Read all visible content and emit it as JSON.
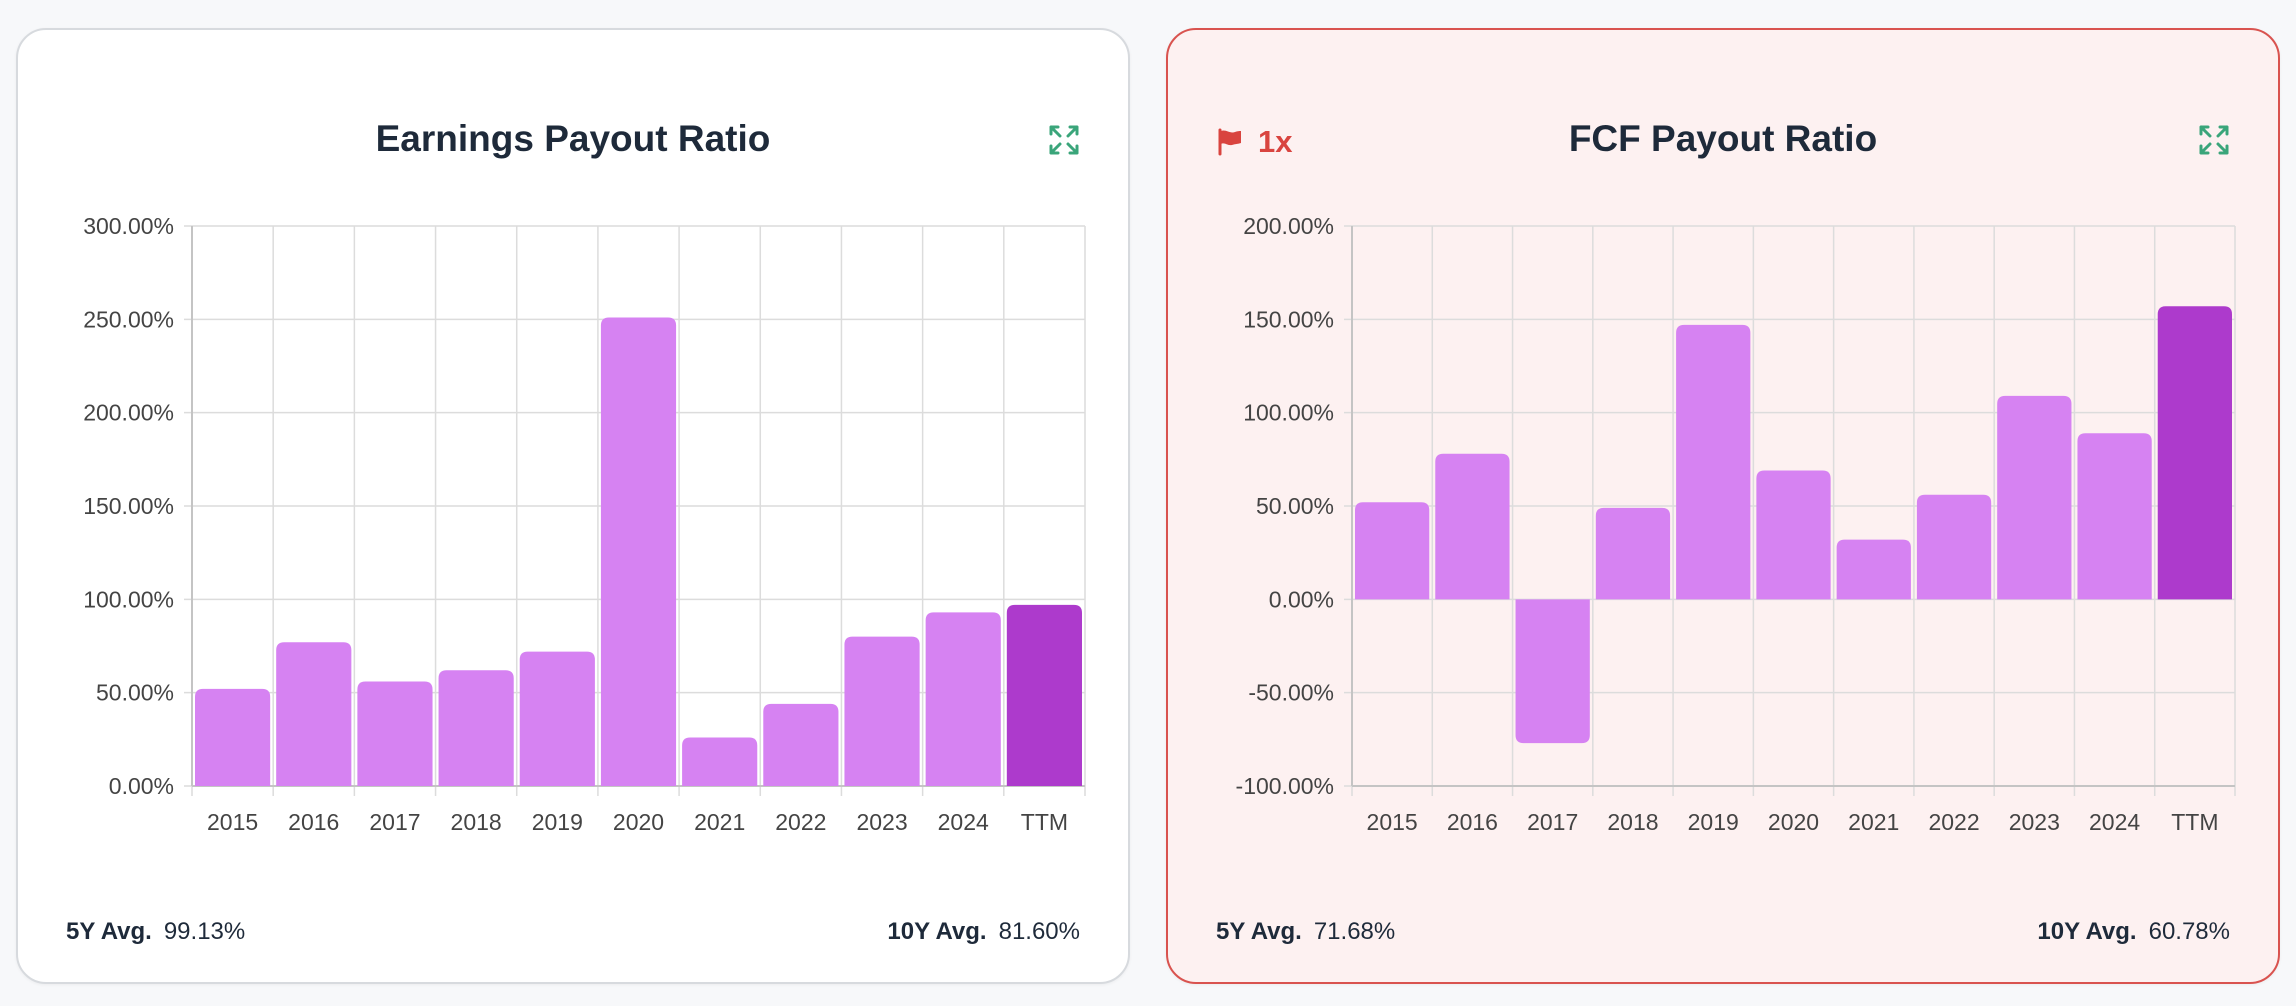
{
  "cards": [
    {
      "title": "Earnings Payout Ratio",
      "flagged": false,
      "avg5_label": "5Y Avg.",
      "avg5_value": "99.13%",
      "avg10_label": "10Y Avg.",
      "avg10_value": "81.60%"
    },
    {
      "title": "FCF Payout Ratio",
      "flagged": true,
      "flag_count": "1x",
      "avg5_label": "5Y Avg.",
      "avg5_value": "71.68%",
      "avg10_label": "10Y Avg.",
      "avg10_value": "60.78%"
    }
  ],
  "colors": {
    "bar": "#d682f2",
    "bar_highlight": "#ad3acc",
    "flag": "#d9443f",
    "expand_icon": "#3aa57a",
    "grid": "#dcdcdc",
    "axis_text": "#444444"
  },
  "icons": {
    "expand": "expand-icon",
    "flag": "flag-icon"
  },
  "chart_data": [
    {
      "type": "bar",
      "title": "Earnings Payout Ratio",
      "categories": [
        "2015",
        "2016",
        "2017",
        "2018",
        "2019",
        "2020",
        "2021",
        "2022",
        "2023",
        "2024",
        "TTM"
      ],
      "values": [
        52,
        77,
        56,
        62,
        72,
        251,
        26,
        44,
        80,
        93,
        97
      ],
      "highlight_index": 10,
      "ylim": [
        0,
        300
      ],
      "yticks": [
        0,
        50,
        100,
        150,
        200,
        250,
        300
      ],
      "ytick_labels": [
        "0.00%",
        "50.00%",
        "100.00%",
        "150.00%",
        "200.00%",
        "250.00%",
        "300.00%"
      ],
      "grid": true,
      "xlabel": "",
      "ylabel": ""
    },
    {
      "type": "bar",
      "title": "FCF Payout Ratio",
      "categories": [
        "2015",
        "2016",
        "2017",
        "2018",
        "2019",
        "2020",
        "2021",
        "2022",
        "2023",
        "2024",
        "TTM"
      ],
      "values": [
        52,
        78,
        -77,
        49,
        147,
        69,
        32,
        56,
        109,
        89,
        157
      ],
      "highlight_index": 10,
      "ylim": [
        -100,
        200
      ],
      "yticks": [
        -100,
        -50,
        0,
        50,
        100,
        150,
        200
      ],
      "ytick_labels": [
        "-100.00%",
        "-50.00%",
        "0.00%",
        "50.00%",
        "100.00%",
        "150.00%",
        "200.00%"
      ],
      "grid": true,
      "xlabel": "",
      "ylabel": ""
    }
  ]
}
